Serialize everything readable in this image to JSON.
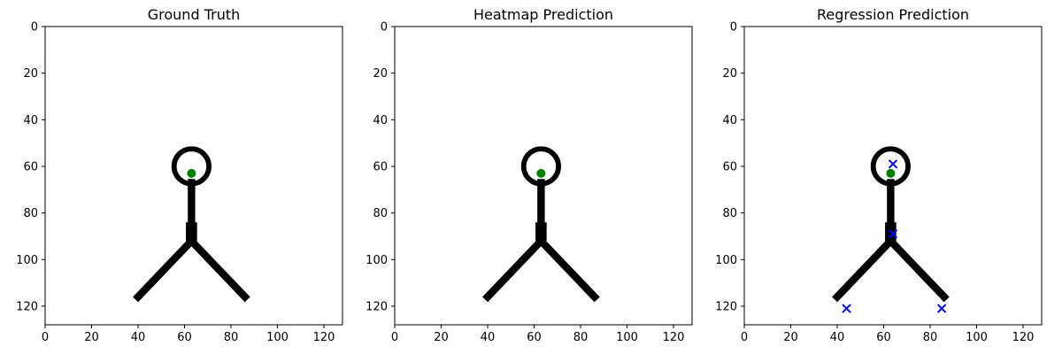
{
  "chart_data": [
    {
      "type": "scatter",
      "title": "Ground Truth",
      "xlim": [
        0,
        128
      ],
      "ylim": [
        128,
        0
      ],
      "xticks": [
        0,
        20,
        40,
        60,
        80,
        100,
        120
      ],
      "yticks": [
        0,
        20,
        40,
        60,
        80,
        100,
        120
      ],
      "grid": false,
      "image": {
        "head": {
          "cx": 63,
          "cy": 60,
          "r": 7.5
        },
        "segments": [
          [
            63,
            67,
            63,
            92
          ],
          [
            63,
            92,
            40,
            116
          ],
          [
            63,
            92,
            86,
            116
          ]
        ]
      },
      "series": [
        {
          "marker": "circle",
          "color": "#008000",
          "points": [
            [
              63,
              63
            ]
          ]
        }
      ]
    },
    {
      "type": "scatter",
      "title": "Heatmap Prediction",
      "xlim": [
        0,
        128
      ],
      "ylim": [
        128,
        0
      ],
      "xticks": [
        0,
        20,
        40,
        60,
        80,
        100,
        120
      ],
      "yticks": [
        0,
        20,
        40,
        60,
        80,
        100,
        120
      ],
      "grid": false,
      "image": {
        "head": {
          "cx": 63,
          "cy": 60,
          "r": 7.5
        },
        "segments": [
          [
            63,
            67,
            63,
            92
          ],
          [
            63,
            92,
            40,
            116
          ],
          [
            63,
            92,
            86,
            116
          ]
        ]
      },
      "series": [
        {
          "marker": "circle",
          "color": "#008000",
          "points": [
            [
              63,
              63
            ]
          ]
        }
      ]
    },
    {
      "type": "scatter",
      "title": "Regression Prediction",
      "xlim": [
        0,
        128
      ],
      "ylim": [
        128,
        0
      ],
      "xticks": [
        0,
        20,
        40,
        60,
        80,
        100,
        120
      ],
      "yticks": [
        0,
        20,
        40,
        60,
        80,
        100,
        120
      ],
      "grid": false,
      "image": {
        "head": {
          "cx": 63,
          "cy": 60,
          "r": 7.5
        },
        "segments": [
          [
            63,
            67,
            63,
            92
          ],
          [
            63,
            92,
            40,
            116
          ],
          [
            63,
            92,
            86,
            116
          ]
        ]
      },
      "series": [
        {
          "marker": "circle",
          "color": "#008000",
          "points": [
            [
              63,
              63
            ]
          ]
        },
        {
          "marker": "x",
          "color": "#0000ff",
          "points": [
            [
              64,
              59
            ],
            [
              64,
              89
            ],
            [
              44,
              121
            ],
            [
              85,
              121
            ]
          ]
        }
      ]
    }
  ]
}
